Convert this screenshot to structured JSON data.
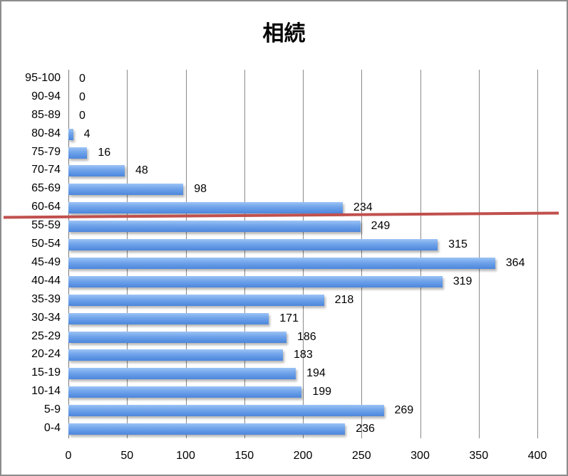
{
  "chart_data": {
    "type": "bar",
    "orientation": "horizontal",
    "title": "相続",
    "xlabel": "",
    "ylabel": "",
    "xlim": [
      0,
      400
    ],
    "x_ticks": [
      "0",
      "50",
      "100",
      "150",
      "200",
      "250",
      "300",
      "350",
      "400"
    ],
    "grid": true,
    "legend": null,
    "categories": [
      "95-100",
      "90-94",
      "85-89",
      "80-84",
      "75-79",
      "70-74",
      "65-69",
      "60-64",
      "55-59",
      "50-54",
      "45-49",
      "40-44",
      "35-39",
      "30-34",
      "25-29",
      "20-24",
      "15-19",
      "10-14",
      "5-9",
      "0-4"
    ],
    "values": [
      0,
      0,
      0,
      4,
      16,
      48,
      98,
      234,
      249,
      315,
      364,
      319,
      218,
      171,
      186,
      183,
      194,
      199,
      269,
      236
    ],
    "data_labels": [
      "0",
      "0",
      "0",
      "4",
      "16",
      "48",
      "98",
      "234",
      "249",
      "315",
      "364",
      "319",
      "218",
      "171",
      "186",
      "183",
      "194",
      "199",
      "269",
      "236"
    ],
    "annotations": [
      {
        "type": "line",
        "description": "red horizontal divider between 60-64 and 55-59",
        "color": "#c0504d"
      }
    ],
    "colors": {
      "bar": "#5a8fe0",
      "grid": "#8a8a8a",
      "divider": "#c0504d",
      "border": "#8c8c8c"
    }
  }
}
